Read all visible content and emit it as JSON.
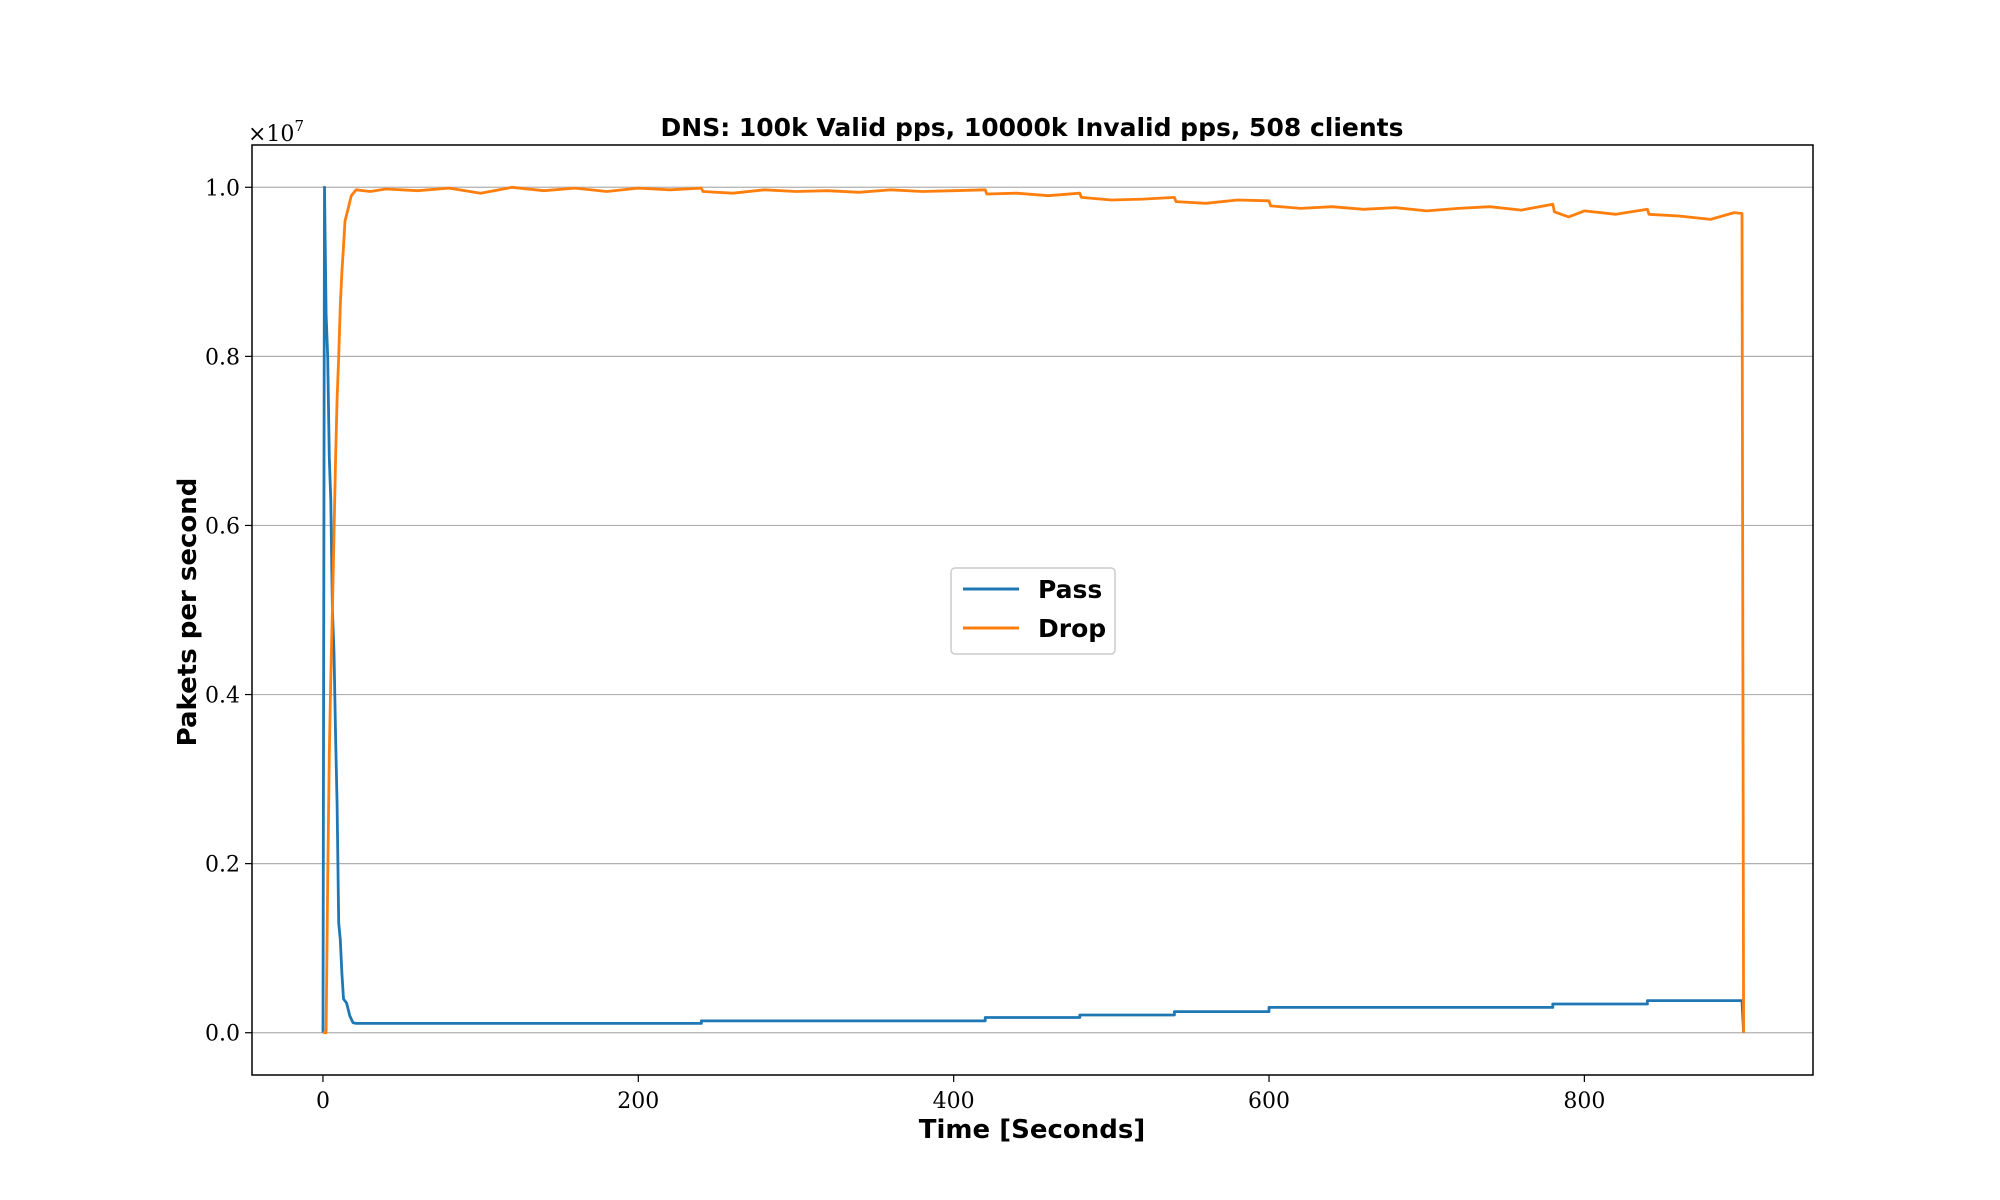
{
  "chart_data": {
    "type": "line",
    "title": "DNS: 100k Valid pps, 10000k Invalid pps, 508 clients",
    "xlabel": "Time [Seconds]",
    "ylabel": "Pakets per second",
    "y_offset_label": "×10",
    "y_offset_exponent": "7",
    "xlim": [
      -45,
      945
    ],
    "ylim": [
      -0.05,
      1.05
    ],
    "xticks": [
      0,
      200,
      400,
      600,
      800
    ],
    "yticks": [
      0.0,
      0.2,
      0.4,
      0.6,
      0.8,
      1.0
    ],
    "xtick_labels": [
      "0",
      "200",
      "400",
      "600",
      "800"
    ],
    "ytick_labels": [
      "0.0",
      "0.2",
      "0.4",
      "0.6",
      "0.8",
      "1.0"
    ],
    "grid": "horizontal",
    "legend_position": "center",
    "series": [
      {
        "name": "Pass",
        "color": "#1f77b4",
        "points": [
          [
            0,
            0
          ],
          [
            1,
            1.0
          ],
          [
            2,
            0.85
          ],
          [
            3,
            0.8
          ],
          [
            4,
            0.68
          ],
          [
            5,
            0.63
          ],
          [
            6,
            0.5
          ],
          [
            7,
            0.45
          ],
          [
            8,
            0.35
          ],
          [
            9,
            0.27
          ],
          [
            10,
            0.13
          ],
          [
            11,
            0.11
          ],
          [
            12,
            0.07
          ],
          [
            13,
            0.04
          ],
          [
            15,
            0.035
          ],
          [
            17,
            0.02
          ],
          [
            19,
            0.012
          ],
          [
            21,
            0.011
          ],
          [
            60,
            0.011
          ],
          [
            120,
            0.011
          ],
          [
            180,
            0.011
          ],
          [
            240,
            0.011
          ],
          [
            240,
            0.014
          ],
          [
            300,
            0.014
          ],
          [
            360,
            0.014
          ],
          [
            420,
            0.014
          ],
          [
            420,
            0.018
          ],
          [
            480,
            0.018
          ],
          [
            480,
            0.021
          ],
          [
            540,
            0.021
          ],
          [
            540,
            0.025
          ],
          [
            600,
            0.025
          ],
          [
            600,
            0.03
          ],
          [
            660,
            0.03
          ],
          [
            720,
            0.03
          ],
          [
            780,
            0.03
          ],
          [
            780,
            0.034
          ],
          [
            840,
            0.034
          ],
          [
            840,
            0.038
          ],
          [
            900,
            0.038
          ],
          [
            901,
            0.0
          ]
        ]
      },
      {
        "name": "Drop",
        "color": "#ff7f0e",
        "points": [
          [
            0,
            0
          ],
          [
            2,
            0.0
          ],
          [
            3,
            0.18
          ],
          [
            4,
            0.33
          ],
          [
            5,
            0.42
          ],
          [
            6,
            0.5
          ],
          [
            7,
            0.59
          ],
          [
            8,
            0.68
          ],
          [
            9,
            0.75
          ],
          [
            10,
            0.8
          ],
          [
            11,
            0.86
          ],
          [
            12,
            0.9
          ],
          [
            13,
            0.93
          ],
          [
            14,
            0.96
          ],
          [
            16,
            0.975
          ],
          [
            18,
            0.99
          ],
          [
            21,
            0.997
          ],
          [
            30,
            0.995
          ],
          [
            40,
            0.998
          ],
          [
            60,
            0.996
          ],
          [
            80,
            0.999
          ],
          [
            100,
            0.993
          ],
          [
            120,
            1.0
          ],
          [
            140,
            0.996
          ],
          [
            160,
            0.999
          ],
          [
            180,
            0.995
          ],
          [
            200,
            0.999
          ],
          [
            220,
            0.997
          ],
          [
            240,
            0.999
          ],
          [
            241,
            0.995
          ],
          [
            260,
            0.993
          ],
          [
            280,
            0.997
          ],
          [
            300,
            0.995
          ],
          [
            320,
            0.996
          ],
          [
            340,
            0.994
          ],
          [
            360,
            0.997
          ],
          [
            380,
            0.995
          ],
          [
            400,
            0.996
          ],
          [
            420,
            0.997
          ],
          [
            421,
            0.992
          ],
          [
            440,
            0.993
          ],
          [
            460,
            0.99
          ],
          [
            480,
            0.993
          ],
          [
            481,
            0.988
          ],
          [
            500,
            0.985
          ],
          [
            520,
            0.986
          ],
          [
            540,
            0.988
          ],
          [
            541,
            0.983
          ],
          [
            560,
            0.981
          ],
          [
            580,
            0.985
          ],
          [
            600,
            0.984
          ],
          [
            601,
            0.978
          ],
          [
            620,
            0.975
          ],
          [
            640,
            0.977
          ],
          [
            660,
            0.974
          ],
          [
            680,
            0.976
          ],
          [
            700,
            0.972
          ],
          [
            720,
            0.975
          ],
          [
            740,
            0.977
          ],
          [
            760,
            0.973
          ],
          [
            780,
            0.98
          ],
          [
            781,
            0.971
          ],
          [
            790,
            0.965
          ],
          [
            800,
            0.972
          ],
          [
            820,
            0.968
          ],
          [
            840,
            0.974
          ],
          [
            841,
            0.968
          ],
          [
            860,
            0.966
          ],
          [
            880,
            0.962
          ],
          [
            895,
            0.97
          ],
          [
            900,
            0.969
          ],
          [
            901,
            0.0
          ]
        ]
      }
    ]
  }
}
